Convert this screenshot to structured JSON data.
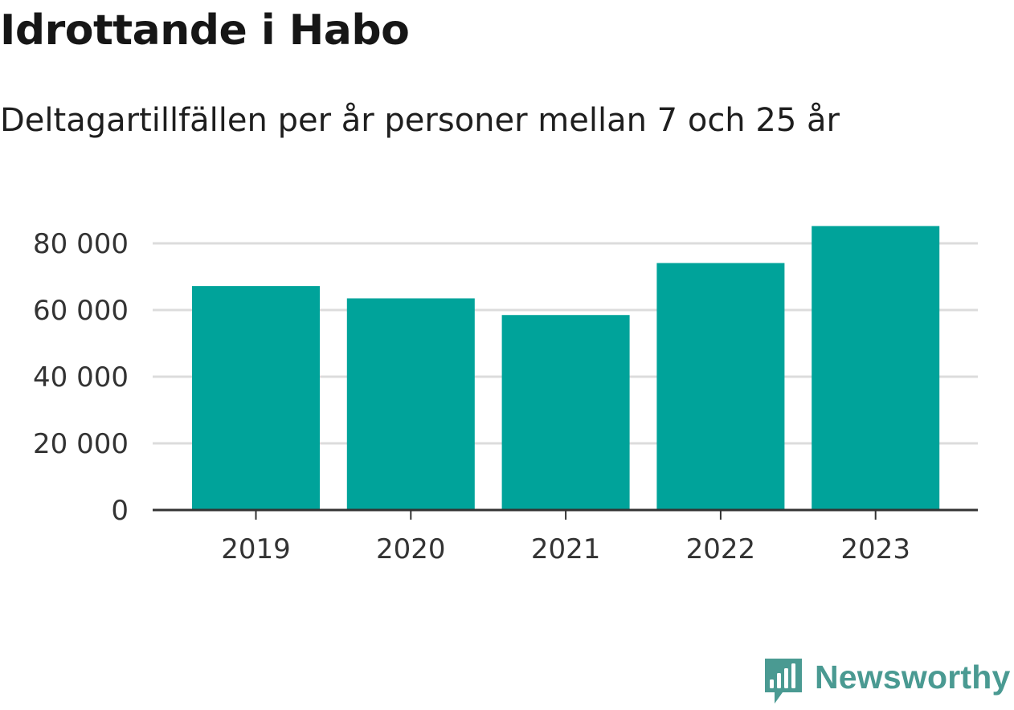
{
  "title": "Idrottande i Habo",
  "subtitle": "Deltagartillfällen per år personer mellan 7 och 25 år",
  "brand": {
    "name": "Newsworthy",
    "logo_icon": "bar-chart-speech-bubble-icon",
    "color": "#4a9a92"
  },
  "chart_data": {
    "type": "bar",
    "categories": [
      "2019",
      "2020",
      "2021",
      "2022",
      "2023"
    ],
    "values": [
      67200,
      63500,
      58500,
      74100,
      85200
    ],
    "y_ticks": [
      0,
      20000,
      40000,
      60000,
      80000
    ],
    "y_tick_labels": [
      "0",
      "20 000",
      "40 000",
      "60 000",
      "80 000"
    ],
    "ylim": [
      0,
      88000
    ],
    "grid": true,
    "bar_color": "#00a39a",
    "grid_color": "#dcdcdc",
    "axis_color": "#333333"
  }
}
